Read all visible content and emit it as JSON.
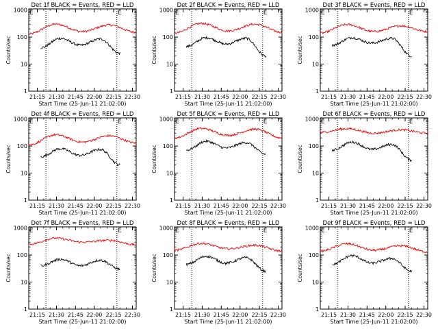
{
  "colors": {
    "events": "#000000",
    "lld": "#e60000",
    "background": "#ffffff"
  },
  "chart_data": [
    {
      "type": "line",
      "title": "Det 1f BLACK = Events, RED = LLD",
      "xlabel": "Start Time (25-Jun-11 21:02:00)",
      "ylabel": "Counts/sec",
      "x_ticks": [
        "21:15",
        "21:30",
        "21:45",
        "22:00",
        "22:15",
        "22:30"
      ],
      "y_ticks": [
        "1",
        "10",
        "100",
        "1000"
      ],
      "y_scale": "log",
      "ylim": [
        1,
        1100
      ],
      "marker_labels": [
        "E",
        "E"
      ],
      "lld_x": [
        0,
        0.25,
        0.5,
        0.75,
        1
      ],
      "lld_y": [
        130,
        300,
        160,
        280,
        150
      ],
      "events_x": [
        0,
        0.25,
        0.5,
        0.75,
        1
      ],
      "events_y": [
        40,
        90,
        50,
        85,
        25
      ],
      "series": [
        {
          "name": "Events",
          "color": "#000000"
        },
        {
          "name": "LLD",
          "color": "#e60000"
        }
      ]
    },
    {
      "type": "line",
      "title": "Det 2f BLACK = Events, RED = LLD",
      "xlabel": "Start Time (25-Jun-11 21:02:00)",
      "ylabel": "Counts/sec",
      "x_ticks": [
        "21:15",
        "21:30",
        "21:45",
        "22:00",
        "22:15",
        "22:30"
      ],
      "y_ticks": [
        "1",
        "10",
        "100",
        "1000"
      ],
      "y_scale": "log",
      "ylim": [
        1,
        1100
      ],
      "marker_labels": [
        "E",
        "E"
      ],
      "lld_x": [
        0,
        0.25,
        0.5,
        0.75,
        1
      ],
      "lld_y": [
        140,
        320,
        170,
        300,
        150
      ],
      "events_x": [
        0,
        0.25,
        0.5,
        0.75,
        1
      ],
      "events_y": [
        45,
        95,
        55,
        90,
        20
      ],
      "series": [
        {
          "name": "Events",
          "color": "#000000"
        },
        {
          "name": "LLD",
          "color": "#e60000"
        }
      ]
    },
    {
      "type": "line",
      "title": "Det 3f BLACK = Events, RED = LLD",
      "xlabel": "Start Time (25-Jun-11 21:02:00)",
      "ylabel": "Counts/sec",
      "x_ticks": [
        "21:15",
        "21:30",
        "21:45",
        "22:00",
        "22:15",
        "22:30"
      ],
      "y_ticks": [
        "1",
        "10",
        "100",
        "1000"
      ],
      "y_scale": "log",
      "ylim": [
        1,
        1100
      ],
      "marker_labels": [
        "E",
        "E"
      ],
      "lld_x": [
        0,
        0.25,
        0.5,
        0.75,
        1
      ],
      "lld_y": [
        140,
        290,
        160,
        260,
        160
      ],
      "events_x": [
        0,
        0.25,
        0.5,
        0.75,
        1
      ],
      "events_y": [
        50,
        95,
        60,
        90,
        20
      ],
      "series": [
        {
          "name": "Events",
          "color": "#000000"
        },
        {
          "name": "LLD",
          "color": "#e60000"
        }
      ]
    },
    {
      "type": "line",
      "title": "Det 4f BLACK = Events, RED = LLD",
      "xlabel": "Start Time (25-Jun-11 21:02:00)",
      "ylabel": "Counts/sec",
      "x_ticks": [
        "21:15",
        "21:30",
        "21:45",
        "22:00",
        "22:15",
        "22:30"
      ],
      "y_ticks": [
        "1",
        "10",
        "100",
        "1000"
      ],
      "y_scale": "log",
      "ylim": [
        1,
        1100
      ],
      "marker_labels": [
        "E",
        "E"
      ],
      "lld_x": [
        0,
        0.25,
        0.5,
        0.75,
        1
      ],
      "lld_y": [
        110,
        260,
        140,
        240,
        130
      ],
      "events_x": [
        0,
        0.25,
        0.5,
        0.75,
        1
      ],
      "events_y": [
        40,
        80,
        45,
        75,
        20
      ],
      "series": [
        {
          "name": "Events",
          "color": "#000000"
        },
        {
          "name": "LLD",
          "color": "#e60000"
        }
      ]
    },
    {
      "type": "line",
      "title": "Det 5f BLACK = Events, RED = LLD",
      "xlabel": "Start Time (25-Jun-11 21:02:00)",
      "ylabel": "Counts/sec",
      "x_ticks": [
        "21:15",
        "21:30",
        "21:45",
        "22:00",
        "22:15",
        "22:30"
      ],
      "y_ticks": [
        "1",
        "10",
        "100",
        "1000"
      ],
      "y_scale": "log",
      "ylim": [
        1,
        1100
      ],
      "marker_labels": [
        "E",
        "E"
      ],
      "lld_x": [
        0,
        0.25,
        0.5,
        0.75,
        1
      ],
      "lld_y": [
        200,
        450,
        250,
        420,
        200
      ],
      "events_x": [
        0,
        0.25,
        0.5,
        0.75,
        1
      ],
      "events_y": [
        70,
        150,
        85,
        135,
        50
      ],
      "series": [
        {
          "name": "Events",
          "color": "#000000"
        },
        {
          "name": "LLD",
          "color": "#e60000"
        }
      ]
    },
    {
      "type": "line",
      "title": "Det 6f BLACK = Events, RED = LLD",
      "xlabel": "Start Time (25-Jun-11 21:02:00)",
      "ylabel": "Counts/sec",
      "x_ticks": [
        "21:15",
        "21:30",
        "21:45",
        "22:00",
        "22:15",
        "22:30"
      ],
      "y_ticks": [
        "1",
        "10",
        "100",
        "1000"
      ],
      "y_scale": "log",
      "ylim": [
        1,
        1100
      ],
      "marker_labels": [
        "E",
        "E"
      ],
      "lld_x": [
        0,
        0.25,
        0.5,
        0.75,
        1
      ],
      "lld_y": [
        320,
        440,
        300,
        400,
        300
      ],
      "events_x": [
        0,
        0.25,
        0.5,
        0.75,
        1
      ],
      "events_y": [
        70,
        140,
        75,
        115,
        30
      ],
      "series": [
        {
          "name": "Events",
          "color": "#000000"
        },
        {
          "name": "LLD",
          "color": "#e60000"
        }
      ]
    },
    {
      "type": "line",
      "title": "Det 7f BLACK = Events, RED = LLD",
      "xlabel": "Start Time (25-Jun-11 21:02:00)",
      "ylabel": "Counts/sec",
      "x_ticks": [
        "21:15",
        "21:30",
        "21:45",
        "22:00",
        "22:15",
        "22:30"
      ],
      "y_ticks": [
        "1",
        "10",
        "100",
        "1000"
      ],
      "y_scale": "log",
      "ylim": [
        1,
        1100
      ],
      "marker_labels": [
        "E",
        "E"
      ],
      "lld_x": [
        0,
        0.25,
        0.5,
        0.75,
        1
      ],
      "lld_y": [
        250,
        420,
        300,
        350,
        240
      ],
      "events_x": [
        0,
        0.25,
        0.5,
        0.75,
        1
      ],
      "events_y": [
        40,
        70,
        40,
        65,
        30
      ],
      "series": [
        {
          "name": "Events",
          "color": "#000000"
        },
        {
          "name": "LLD",
          "color": "#e60000"
        }
      ]
    },
    {
      "type": "line",
      "title": "Det 8f BLACK = Events, RED = LLD",
      "xlabel": "Start Time (25-Jun-11 21:02:00)",
      "ylabel": "Counts/sec",
      "x_ticks": [
        "21:15",
        "21:30",
        "21:45",
        "22:00",
        "22:15",
        "22:30"
      ],
      "y_ticks": [
        "1",
        "10",
        "100",
        "1000"
      ],
      "y_scale": "log",
      "ylim": [
        1,
        1100
      ],
      "marker_labels": [
        "E",
        "E"
      ],
      "lld_x": [
        0,
        0.25,
        0.5,
        0.75,
        1
      ],
      "lld_y": [
        150,
        270,
        170,
        230,
        140
      ],
      "events_x": [
        0,
        0.25,
        0.5,
        0.75,
        1
      ],
      "events_y": [
        45,
        90,
        50,
        80,
        25
      ],
      "series": [
        {
          "name": "Events",
          "color": "#000000"
        },
        {
          "name": "LLD",
          "color": "#e60000"
        }
      ]
    },
    {
      "type": "line",
      "title": "Det 9f BLACK = Events, RED = LLD",
      "xlabel": "Start Time (25-Jun-11 21:02:00)",
      "ylabel": "Counts/sec",
      "x_ticks": [
        "21:15",
        "21:30",
        "21:45",
        "22:00",
        "22:15",
        "22:30"
      ],
      "y_ticks": [
        "1",
        "10",
        "100",
        "1000"
      ],
      "y_scale": "log",
      "ylim": [
        1,
        1100
      ],
      "marker_labels": [
        "E",
        "E"
      ],
      "lld_x": [
        0,
        0.25,
        0.5,
        0.75,
        1
      ],
      "lld_y": [
        140,
        260,
        150,
        220,
        130
      ],
      "events_x": [
        0,
        0.25,
        0.5,
        0.75,
        1
      ],
      "events_y": [
        45,
        95,
        50,
        75,
        25
      ],
      "series": [
        {
          "name": "Events",
          "color": "#000000"
        },
        {
          "name": "LLD",
          "color": "#e60000"
        }
      ]
    }
  ]
}
